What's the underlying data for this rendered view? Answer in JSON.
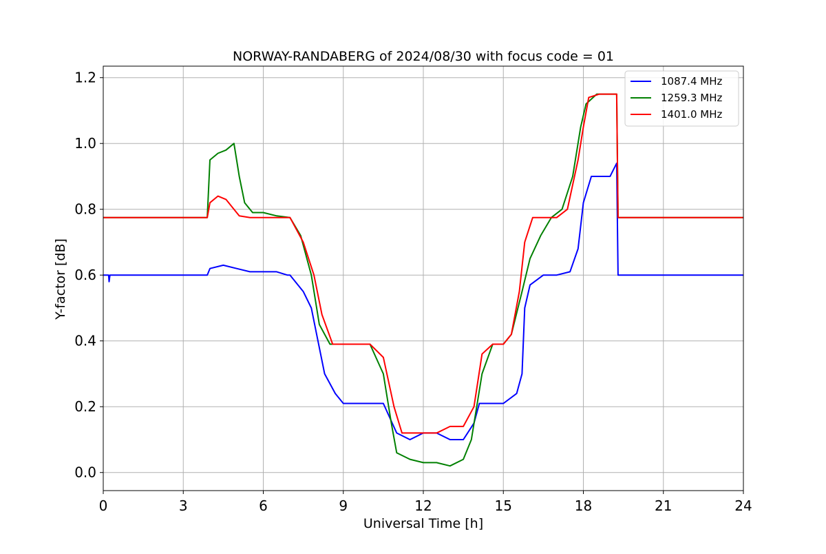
{
  "chart_data": {
    "type": "line",
    "title": "NORWAY-RANDABERG of 2024/08/30 with focus code = 01",
    "xlabel": "Universal Time [h]",
    "ylabel": "Y-factor [dB]",
    "xlim": [
      0,
      24
    ],
    "ylim": [
      -0.055,
      1.235
    ],
    "xticks": [
      0,
      3,
      6,
      9,
      12,
      15,
      18,
      21,
      24
    ],
    "yticks": [
      0.0,
      0.2,
      0.4,
      0.6,
      0.8,
      1.0,
      1.2
    ],
    "xtick_labels": [
      "0",
      "3",
      "6",
      "9",
      "12",
      "15",
      "18",
      "21",
      "24"
    ],
    "ytick_labels": [
      "0.0",
      "0.2",
      "0.4",
      "0.6",
      "0.8",
      "1.0",
      "1.2"
    ],
    "grid": true,
    "legend_position": "top-right",
    "series": [
      {
        "name": "1087.4 MHz",
        "color": "#0000ff",
        "x": [
          0,
          0.2,
          0.22,
          0.25,
          1,
          2,
          3,
          3.9,
          4.0,
          4.5,
          5,
          5.5,
          6,
          6.5,
          6.9,
          7.0,
          7.5,
          7.8,
          8.0,
          8.3,
          8.7,
          9.0,
          9.5,
          10.0,
          10.5,
          11.0,
          11.5,
          12.0,
          12.5,
          13.0,
          13.5,
          13.9,
          14.1,
          14.5,
          15.0,
          15.5,
          15.7,
          15.8,
          16.0,
          16.5,
          17.0,
          17.5,
          17.8,
          18.0,
          18.3,
          18.7,
          19.0,
          19.25,
          19.3,
          19.5,
          20,
          21,
          22,
          23,
          24
        ],
        "y": [
          0.6,
          0.6,
          0.58,
          0.6,
          0.6,
          0.6,
          0.6,
          0.6,
          0.62,
          0.63,
          0.62,
          0.61,
          0.61,
          0.61,
          0.6,
          0.6,
          0.55,
          0.5,
          0.42,
          0.3,
          0.24,
          0.21,
          0.21,
          0.21,
          0.21,
          0.12,
          0.1,
          0.12,
          0.12,
          0.1,
          0.1,
          0.15,
          0.21,
          0.21,
          0.21,
          0.24,
          0.3,
          0.5,
          0.57,
          0.6,
          0.6,
          0.61,
          0.68,
          0.82,
          0.9,
          0.9,
          0.9,
          0.94,
          0.6,
          0.6,
          0.6,
          0.6,
          0.6,
          0.6,
          0.6
        ]
      },
      {
        "name": "1259.3 MHz",
        "color": "#008000",
        "x": [
          0,
          1,
          2,
          3,
          3.9,
          4.0,
          4.3,
          4.6,
          4.9,
          5.1,
          5.3,
          5.6,
          6.0,
          6.5,
          7.0,
          7.4,
          7.8,
          8.1,
          8.5,
          9.0,
          9.5,
          10.0,
          10.5,
          10.8,
          11.0,
          11.5,
          12.0,
          12.5,
          13.0,
          13.5,
          13.8,
          14.2,
          14.6,
          15.0,
          15.3,
          15.7,
          16.0,
          16.4,
          16.8,
          17.2,
          17.6,
          17.9,
          18.1,
          18.5,
          19.0,
          19.25,
          19.3,
          20,
          21,
          22,
          23,
          24
        ],
        "y": [
          0.775,
          0.775,
          0.775,
          0.775,
          0.775,
          0.95,
          0.97,
          0.98,
          1.0,
          0.9,
          0.82,
          0.79,
          0.79,
          0.78,
          0.775,
          0.72,
          0.6,
          0.45,
          0.39,
          0.39,
          0.39,
          0.39,
          0.3,
          0.15,
          0.06,
          0.04,
          0.03,
          0.03,
          0.02,
          0.04,
          0.1,
          0.3,
          0.39,
          0.39,
          0.42,
          0.55,
          0.65,
          0.72,
          0.775,
          0.8,
          0.9,
          1.05,
          1.12,
          1.15,
          1.15,
          1.15,
          0.775,
          0.775,
          0.775,
          0.775,
          0.775,
          0.775
        ]
      },
      {
        "name": "1401.0 MHz",
        "color": "#ff0000",
        "x": [
          0,
          1,
          2,
          3,
          3.9,
          4.0,
          4.3,
          4.6,
          4.9,
          5.1,
          5.5,
          6.0,
          6.5,
          7.0,
          7.5,
          7.9,
          8.2,
          8.6,
          9.0,
          9.5,
          10.0,
          10.5,
          10.9,
          11.2,
          11.5,
          12.0,
          12.5,
          13.0,
          13.5,
          13.9,
          14.2,
          14.6,
          15.0,
          15.3,
          15.6,
          15.8,
          16.1,
          16.5,
          17.0,
          17.4,
          17.8,
          18.0,
          18.2,
          18.6,
          19.0,
          19.25,
          19.3,
          20,
          21,
          22,
          23,
          24
        ],
        "y": [
          0.775,
          0.775,
          0.775,
          0.775,
          0.775,
          0.82,
          0.84,
          0.83,
          0.8,
          0.78,
          0.775,
          0.775,
          0.775,
          0.775,
          0.7,
          0.6,
          0.48,
          0.39,
          0.39,
          0.39,
          0.39,
          0.35,
          0.2,
          0.12,
          0.12,
          0.12,
          0.12,
          0.14,
          0.14,
          0.2,
          0.36,
          0.39,
          0.39,
          0.42,
          0.55,
          0.7,
          0.775,
          0.775,
          0.775,
          0.8,
          0.95,
          1.05,
          1.14,
          1.15,
          1.15,
          1.15,
          0.775,
          0.775,
          0.775,
          0.775,
          0.775,
          0.775
        ]
      }
    ]
  }
}
